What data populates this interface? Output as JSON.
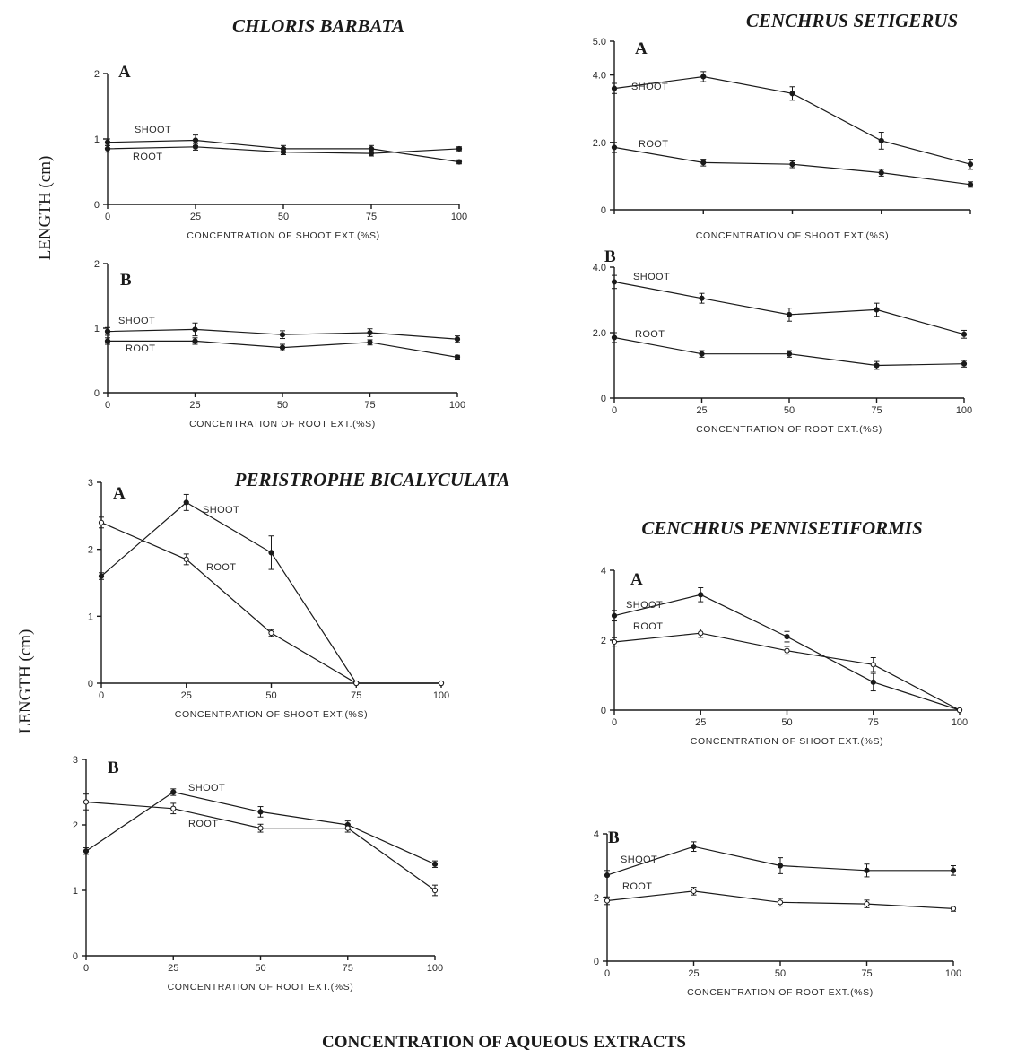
{
  "figure": {
    "ylabel": "LENGTH (cm)",
    "footer": "CONCENTRATION OF AQUEOUS EXTRACTS"
  },
  "chart_data": [
    {
      "type": "line",
      "species": "CHLORIS BARBATA",
      "panel": "A",
      "xlabel": "CONCENTRATION OF SHOOT EXT.(%S)",
      "x": [
        0,
        25,
        50,
        75,
        100
      ],
      "xlim": [
        0,
        100
      ],
      "ylim": [
        0,
        2
      ],
      "yticks": [
        0,
        1,
        2
      ],
      "series": [
        {
          "name": "SHOOT",
          "values": [
            0.95,
            0.98,
            0.85,
            0.85,
            0.65
          ],
          "errors": [
            0.05,
            0.08,
            0.05,
            0.05,
            0.03
          ]
        },
        {
          "name": "ROOT",
          "values": [
            0.85,
            0.88,
            0.8,
            0.78,
            0.85
          ],
          "errors": [
            0.05,
            0.05,
            0.04,
            0.04,
            0.03
          ]
        }
      ]
    },
    {
      "type": "line",
      "species": "CHLORIS BARBATA",
      "panel": "B",
      "xlabel": "CONCENTRATION OF ROOT EXT.(%S)",
      "x": [
        0,
        25,
        50,
        75,
        100
      ],
      "xlim": [
        0,
        100
      ],
      "ylim": [
        0,
        2
      ],
      "yticks": [
        0,
        1,
        2
      ],
      "series": [
        {
          "name": "SHOOT",
          "values": [
            0.95,
            0.98,
            0.9,
            0.93,
            0.83
          ],
          "errors": [
            0.06,
            0.1,
            0.06,
            0.06,
            0.05
          ]
        },
        {
          "name": "ROOT",
          "values": [
            0.8,
            0.8,
            0.7,
            0.78,
            0.55
          ],
          "errors": [
            0.05,
            0.05,
            0.05,
            0.04,
            0.03
          ]
        }
      ]
    },
    {
      "type": "line",
      "species": "CENCHRUS SETIGERUS",
      "panel": "A",
      "xlabel": "CONCENTRATION OF SHOOT EXT.(%S)",
      "x": [
        0,
        25,
        50,
        75,
        100
      ],
      "xlim": [
        0,
        100
      ],
      "ylim": [
        0,
        5
      ],
      "yticks": [
        0,
        2.0,
        4.0,
        5.0
      ],
      "series": [
        {
          "name": "SHOOT",
          "values": [
            3.6,
            3.95,
            3.45,
            2.05,
            1.35
          ],
          "errors": [
            0.15,
            0.15,
            0.2,
            0.25,
            0.15
          ]
        },
        {
          "name": "ROOT",
          "values": [
            1.85,
            1.4,
            1.35,
            1.1,
            0.75
          ],
          "errors": [
            0.15,
            0.1,
            0.1,
            0.1,
            0.08
          ]
        }
      ]
    },
    {
      "type": "line",
      "species": "CENCHRUS SETIGERUS",
      "panel": "B",
      "xlabel": "CONCENTRATION OF ROOT EXT.(%S)",
      "x": [
        0,
        25,
        50,
        75,
        100
      ],
      "xlim": [
        0,
        100
      ],
      "ylim": [
        0,
        4
      ],
      "yticks": [
        0,
        2.0,
        4.0
      ],
      "series": [
        {
          "name": "SHOOT",
          "values": [
            3.55,
            3.05,
            2.55,
            2.7,
            1.95
          ],
          "errors": [
            0.2,
            0.15,
            0.2,
            0.2,
            0.12
          ]
        },
        {
          "name": "ROOT",
          "values": [
            1.85,
            1.35,
            1.35,
            1.0,
            1.05
          ],
          "errors": [
            0.15,
            0.1,
            0.1,
            0.12,
            0.1
          ]
        }
      ]
    },
    {
      "type": "line",
      "species": "PERISTROPHE BICALYCULATA",
      "panel": "A",
      "xlabel": "CONCENTRATION OF SHOOT EXT.(%S)",
      "x": [
        0,
        25,
        50,
        75,
        100
      ],
      "xlim": [
        0,
        100
      ],
      "ylim": [
        0,
        3
      ],
      "yticks": [
        0,
        1,
        2,
        3
      ],
      "series": [
        {
          "name": "SHOOT",
          "values": [
            1.6,
            2.7,
            1.95,
            0,
            0
          ],
          "errors": [
            0.05,
            0.12,
            0.25,
            0,
            0
          ]
        },
        {
          "name": "ROOT",
          "values": [
            2.4,
            1.85,
            0.75,
            0,
            0
          ],
          "errors": [
            0.08,
            0.08,
            0.05,
            0,
            0
          ]
        }
      ]
    },
    {
      "type": "line",
      "species": "PERISTROPHE BICALYCULATA",
      "panel": "B",
      "xlabel": "CONCENTRATION OF ROOT EXT.(%S)",
      "x": [
        0,
        25,
        50,
        75,
        100
      ],
      "xlim": [
        0,
        100
      ],
      "ylim": [
        0,
        3
      ],
      "yticks": [
        0,
        1,
        2,
        3
      ],
      "series": [
        {
          "name": "SHOOT",
          "values": [
            1.6,
            2.5,
            2.2,
            2.0,
            1.4
          ],
          "errors": [
            0.05,
            0.05,
            0.08,
            0.06,
            0.05
          ]
        },
        {
          "name": "ROOT",
          "values": [
            2.35,
            2.25,
            1.95,
            1.95,
            1.0
          ],
          "errors": [
            0.12,
            0.08,
            0.06,
            0.06,
            0.08
          ]
        }
      ]
    },
    {
      "type": "line",
      "species": "CENCHRUS PENNISETIFORMIS",
      "panel": "A",
      "xlabel": "CONCENTRATION OF SHOOT EXT.(%S)",
      "x": [
        0,
        25,
        50,
        75,
        100
      ],
      "xlim": [
        0,
        100
      ],
      "ylim": [
        0,
        4
      ],
      "yticks": [
        0,
        2,
        4
      ],
      "series": [
        {
          "name": "SHOOT",
          "values": [
            2.7,
            3.3,
            2.1,
            0.8,
            0
          ],
          "errors": [
            0.15,
            0.2,
            0.15,
            0.25,
            0
          ]
        },
        {
          "name": "ROOT",
          "values": [
            1.95,
            2.2,
            1.7,
            1.3,
            0
          ],
          "errors": [
            0.12,
            0.12,
            0.12,
            0.2,
            0
          ]
        }
      ]
    },
    {
      "type": "line",
      "species": "CENCHRUS PENNISETIFORMIS",
      "panel": "B",
      "xlabel": "CONCENTRATION OF ROOT EXT.(%S)",
      "x": [
        0,
        25,
        50,
        75,
        100
      ],
      "xlim": [
        0,
        100
      ],
      "ylim": [
        0,
        4
      ],
      "yticks": [
        0,
        2,
        4
      ],
      "series": [
        {
          "name": "SHOOT",
          "values": [
            2.7,
            3.6,
            3.0,
            2.85,
            2.85
          ],
          "errors": [
            0.15,
            0.15,
            0.25,
            0.2,
            0.15
          ]
        },
        {
          "name": "ROOT",
          "values": [
            1.9,
            2.2,
            1.85,
            1.8,
            1.65
          ],
          "errors": [
            0.12,
            0.12,
            0.12,
            0.12,
            0.08
          ]
        }
      ]
    }
  ]
}
